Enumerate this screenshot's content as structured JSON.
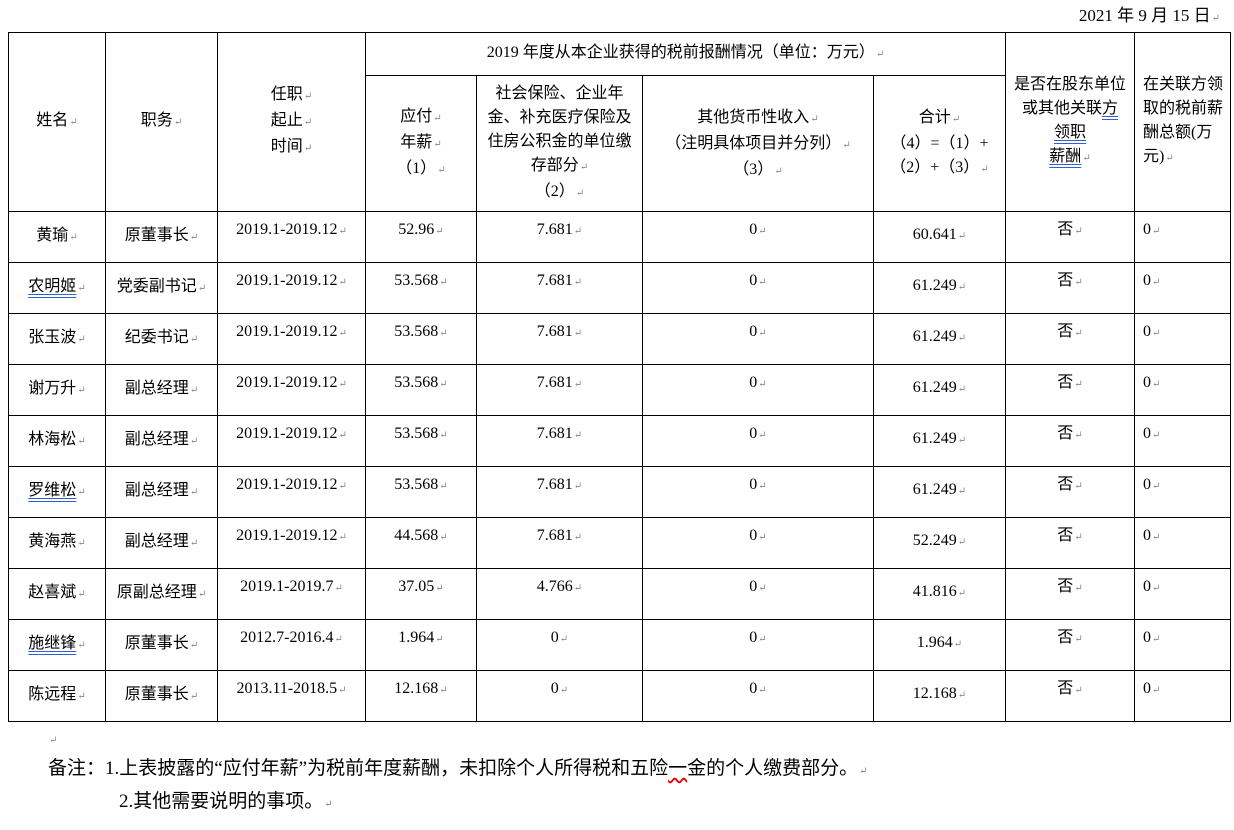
{
  "date": "2021 年 9 月 15 日",
  "header": {
    "name": "姓名",
    "position": "职务",
    "term": [
      "任职",
      "起止",
      "时间"
    ],
    "group_title": "2019 年度从本企业获得的税前报酬情况（单位：万元）",
    "salary": [
      "应付",
      "年薪",
      "（1）"
    ],
    "insurance": [
      "社会保险、企业年金、补充医疗保险及住房公积金的单位缴存部分",
      "（2）"
    ],
    "other_income": [
      "其他货币性收入",
      "（注明具体项目并分列）",
      "（3）"
    ],
    "total": [
      "合计",
      "（4）=（1）+",
      "（2）+（3）"
    ],
    "shareholder_pay": [
      "是否在股东单位或其他关联",
      "方领职",
      "薪酬"
    ],
    "related_total": "在关联方领取的税前薪酬总额(万元)"
  },
  "rows": [
    {
      "name": "黄瑜",
      "underline": false,
      "position": "原董事长",
      "term": "2019.1-2019.12",
      "salary": "52.96",
      "insurance": "7.681",
      "other": "0",
      "total": "60.641",
      "shareholder": "否",
      "related": "0"
    },
    {
      "name": "农明姬",
      "underline": true,
      "position": "党委副书记",
      "term": "2019.1-2019.12",
      "salary": "53.568",
      "insurance": "7.681",
      "other": "0",
      "total": "61.249",
      "shareholder": "否",
      "related": "0"
    },
    {
      "name": "张玉波",
      "underline": false,
      "position": "纪委书记",
      "term": "2019.1-2019.12",
      "salary": "53.568",
      "insurance": "7.681",
      "other": "0",
      "total": "61.249",
      "shareholder": "否",
      "related": "0"
    },
    {
      "name": "谢万升",
      "underline": false,
      "position": "副总经理",
      "term": "2019.1-2019.12",
      "salary": "53.568",
      "insurance": "7.681",
      "other": "0",
      "total": "61.249",
      "shareholder": "否",
      "related": "0"
    },
    {
      "name": "林海松",
      "underline": false,
      "position": "副总经理",
      "term": "2019.1-2019.12",
      "salary": "53.568",
      "insurance": "7.681",
      "other": "0",
      "total": "61.249",
      "shareholder": "否",
      "related": "0"
    },
    {
      "name": "罗维松",
      "underline": true,
      "position": "副总经理",
      "term": "2019.1-2019.12",
      "salary": "53.568",
      "insurance": "7.681",
      "other": "0",
      "total": "61.249",
      "shareholder": "否",
      "related": "0"
    },
    {
      "name": "黄海燕",
      "underline": false,
      "position": "副总经理",
      "term": "2019.1-2019.12",
      "salary": "44.568",
      "insurance": "7.681",
      "other": "0",
      "total": "52.249",
      "shareholder": "否",
      "related": "0"
    },
    {
      "name": "赵喜斌",
      "underline": false,
      "position": "原副总经理",
      "term": "2019.1-2019.7",
      "salary": "37.05",
      "insurance": "4.766",
      "other": "0",
      "total": "41.816",
      "shareholder": "否",
      "related": "0"
    },
    {
      "name": "施继锋",
      "underline": true,
      "position": "原董事长",
      "term": "2012.7-2016.4",
      "salary": "1.964",
      "insurance": "0",
      "other": "0",
      "total": "1.964",
      "shareholder": "否",
      "related": "0"
    },
    {
      "name": "陈远程",
      "underline": false,
      "position": "原董事长",
      "term": "2013.11-2018.5",
      "salary": "12.168",
      "insurance": "0",
      "other": "0",
      "total": "12.168",
      "shareholder": "否",
      "related": "0"
    }
  ],
  "notes": {
    "line1_a": "备注：1.上表披露的“应付年薪”为税前年度薪酬，未扣除个人所得税和五险",
    "line1_b": "一",
    "line1_c": "金的个人缴费部分。",
    "line2": "2.其他需要说明的事项。"
  },
  "colors": {
    "spellcheck_underline": "#2f5fd0",
    "error_underline": "#e00000"
  }
}
